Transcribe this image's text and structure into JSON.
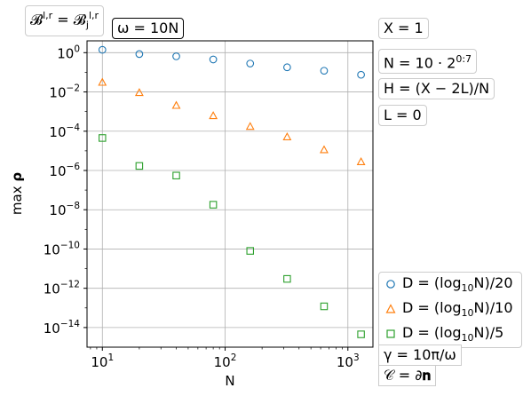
{
  "annotations": {
    "top_left_1": "𝓑^{l,r} = 𝓑_j^{l,r}",
    "top_left_2": "ω = 10N",
    "right_1": "X = 1",
    "right_2": "N = 10 · 2^{0:7}",
    "right_3": "H = (X − 2L)/N",
    "right_4": "L = 0",
    "bottom_1": "γ = 10π/ω",
    "bottom_2": "𝒞 = ∂𝐧"
  },
  "chart_data": {
    "type": "scatter",
    "xlabel": "N",
    "ylabel": "max ρ",
    "x_scale": "log",
    "y_scale": "log",
    "xlim": [
      7.5,
      1600
    ],
    "ylim": [
      1e-15,
      4
    ],
    "grid": true,
    "x_ticks": [
      {
        "value": 10,
        "label": "10^1"
      },
      {
        "value": 100,
        "label": "10^2"
      },
      {
        "value": 1000,
        "label": "10^3"
      }
    ],
    "y_ticks": [
      {
        "value": 1,
        "label": "10^0"
      },
      {
        "value": 0.01,
        "label": "10^-2"
      },
      {
        "value": 0.0001,
        "label": "10^-4"
      },
      {
        "value": 1e-06,
        "label": "10^-6"
      },
      {
        "value": 1e-08,
        "label": "10^-8"
      },
      {
        "value": 1e-10,
        "label": "10^-10"
      },
      {
        "value": 1e-12,
        "label": "10^-12"
      },
      {
        "value": 1e-14,
        "label": "10^-14"
      }
    ],
    "x": [
      10,
      20,
      40,
      80,
      160,
      320,
      640,
      1280
    ],
    "series": [
      {
        "name": "D = (log10 N)/20",
        "marker": "circle",
        "color": "#1f77b4",
        "values": [
          1.4,
          0.85,
          0.65,
          0.45,
          0.28,
          0.18,
          0.12,
          0.075
        ]
      },
      {
        "name": "D = (log10 N)/10",
        "marker": "triangle",
        "color": "#ff7f0e",
        "values": [
          0.03,
          0.009,
          0.002,
          0.0006,
          0.00017,
          5e-05,
          1.1e-05,
          2.7e-06
        ]
      },
      {
        "name": "D = (log10 N)/5",
        "marker": "square",
        "color": "#2ca02c",
        "values": [
          4.5e-05,
          1.7e-06,
          5.5e-07,
          1.8e-08,
          8e-11,
          3e-12,
          1.2e-13,
          4.5e-15
        ]
      }
    ],
    "legend_placement": "bottom-right outside"
  }
}
